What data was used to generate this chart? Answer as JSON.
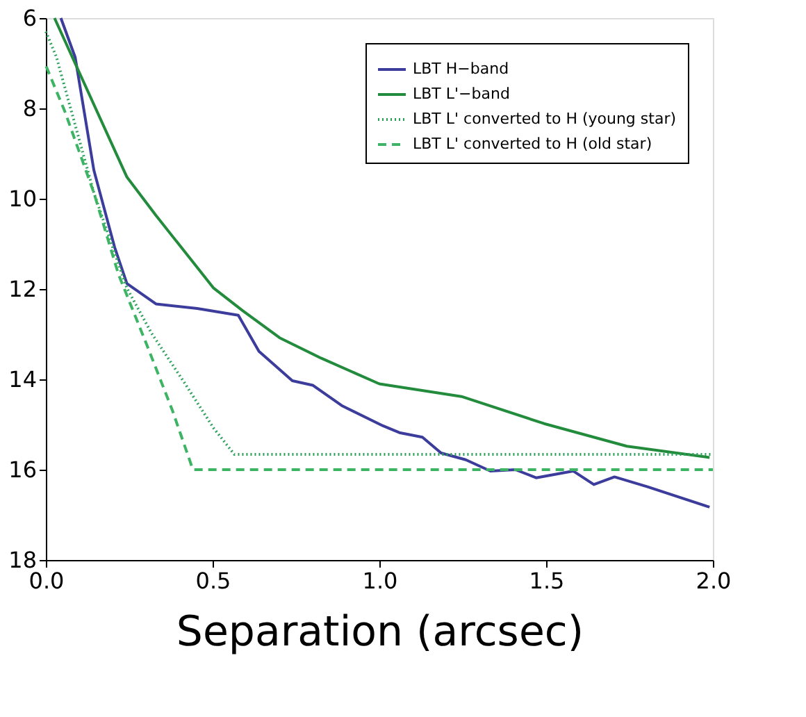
{
  "chart_data": {
    "type": "line",
    "xlabel": "Separation (arcsec)",
    "xlim": [
      0.0,
      2.0
    ],
    "xticks": [
      {
        "value": 0,
        "label": "0.0"
      },
      0.5,
      {
        "value": 1,
        "label": "1.0"
      },
      1.5,
      {
        "value": 2,
        "label": "2.0"
      }
    ],
    "ylim": [
      18,
      6
    ],
    "yticks": [
      6,
      8,
      10,
      12,
      14,
      16,
      18
    ],
    "grid": false,
    "legend": "top right",
    "marker": "none",
    "series": [
      {
        "name": "LBT H−band",
        "color": "#3c3c9c",
        "line_style": "solid",
        "x": [
          0.045,
          0.088,
          0.144,
          0.206,
          0.243,
          0.33,
          0.454,
          0.577,
          0.639,
          0.739,
          0.8,
          0.887,
          1.011,
          1.06,
          1.129,
          1.185,
          1.259,
          1.333,
          1.408,
          1.47,
          1.581,
          1.643,
          1.705,
          1.804,
          1.99
        ],
        "values": [
          6.0,
          6.87,
          9.37,
          11.07,
          11.88,
          12.33,
          12.43,
          12.58,
          13.38,
          14.03,
          14.13,
          14.58,
          15.03,
          15.18,
          15.28,
          15.63,
          15.78,
          16.03,
          16.0,
          16.18,
          16.03,
          16.33,
          16.16,
          16.38,
          16.83
        ]
      },
      {
        "name": "LBT L'−band",
        "color": "#228b3c",
        "line_style": "solid",
        "x": [
          0.026,
          0.243,
          0.33,
          0.416,
          0.503,
          0.59,
          0.701,
          0.825,
          1.0,
          1.246,
          1.494,
          1.742,
          1.99
        ],
        "values": [
          6.0,
          9.52,
          10.37,
          11.17,
          11.98,
          12.48,
          13.08,
          13.53,
          14.1,
          14.38,
          14.98,
          15.48,
          15.73
        ]
      },
      {
        "name": "LBT L' converted to H (young star)",
        "color": "#2ca05a",
        "line_style": "dotted",
        "x": [
          0.0,
          0.032,
          0.144,
          0.243,
          0.317,
          0.416,
          0.503,
          0.565,
          2.0
        ],
        "values": [
          6.3,
          6.87,
          9.87,
          11.98,
          12.98,
          14.08,
          15.08,
          15.66,
          15.66
        ]
      },
      {
        "name": "LBT L' converted to H (old star)",
        "color": "#3cb464",
        "line_style": "dashed",
        "x": [
          0.001,
          0.057,
          0.144,
          0.218,
          0.305,
          0.379,
          0.441,
          2.0
        ],
        "values": [
          7.07,
          8.07,
          9.87,
          11.68,
          13.28,
          14.68,
          16.0,
          16.0
        ]
      }
    ]
  }
}
